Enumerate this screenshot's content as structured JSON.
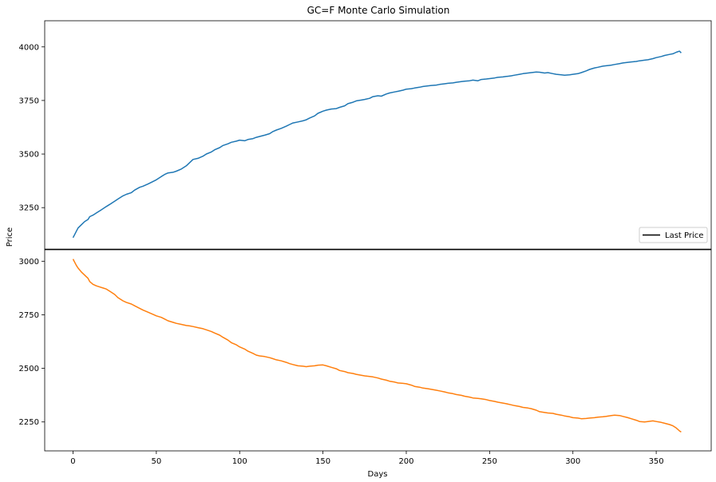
{
  "chart_data": {
    "type": "line",
    "title": "GC=F Monte Carlo Simulation",
    "xlabel": "Days",
    "ylabel": "Price",
    "xlim": [
      -17,
      383
    ],
    "ylim": [
      2115,
      4122
    ],
    "x_ticks": [
      0,
      50,
      100,
      150,
      200,
      250,
      300,
      350
    ],
    "y_ticks": [
      2250,
      2500,
      2750,
      3000,
      3250,
      3500,
      3750,
      4000
    ],
    "grid": false,
    "legend": {
      "position": "right, just above the last-price line",
      "entries": [
        "Last Price"
      ]
    },
    "hline": {
      "label": "Last Price",
      "value": 3055,
      "color": "#000000"
    },
    "series": [
      {
        "color": "#1f77b4",
        "points": [
          [
            0,
            3110
          ],
          [
            1,
            3125
          ],
          [
            2,
            3140
          ],
          [
            3,
            3155
          ],
          [
            5,
            3170
          ],
          [
            7,
            3185
          ],
          [
            9,
            3195
          ],
          [
            10,
            3208
          ],
          [
            12,
            3215
          ],
          [
            14,
            3225
          ],
          [
            16,
            3235
          ],
          [
            18,
            3245
          ],
          [
            20,
            3255
          ],
          [
            22,
            3265
          ],
          [
            25,
            3280
          ],
          [
            27,
            3290
          ],
          [
            30,
            3305
          ],
          [
            32,
            3312
          ],
          [
            35,
            3320
          ],
          [
            37,
            3332
          ],
          [
            40,
            3345
          ],
          [
            42,
            3350
          ],
          [
            45,
            3360
          ],
          [
            48,
            3372
          ],
          [
            50,
            3380
          ],
          [
            53,
            3395
          ],
          [
            55,
            3405
          ],
          [
            57,
            3412
          ],
          [
            60,
            3415
          ],
          [
            62,
            3420
          ],
          [
            65,
            3430
          ],
          [
            68,
            3445
          ],
          [
            70,
            3460
          ],
          [
            72,
            3475
          ],
          [
            75,
            3480
          ],
          [
            78,
            3490
          ],
          [
            80,
            3500
          ],
          [
            83,
            3510
          ],
          [
            85,
            3520
          ],
          [
            88,
            3530
          ],
          [
            90,
            3540
          ],
          [
            93,
            3548
          ],
          [
            95,
            3555
          ],
          [
            98,
            3560
          ],
          [
            100,
            3565
          ],
          [
            103,
            3562
          ],
          [
            105,
            3568
          ],
          [
            108,
            3572
          ],
          [
            110,
            3578
          ],
          [
            112,
            3582
          ],
          [
            115,
            3588
          ],
          [
            118,
            3595
          ],
          [
            120,
            3605
          ],
          [
            122,
            3612
          ],
          [
            125,
            3620
          ],
          [
            128,
            3630
          ],
          [
            130,
            3638
          ],
          [
            132,
            3645
          ],
          [
            135,
            3650
          ],
          [
            138,
            3655
          ],
          [
            140,
            3660
          ],
          [
            142,
            3668
          ],
          [
            145,
            3678
          ],
          [
            147,
            3690
          ],
          [
            150,
            3700
          ],
          [
            152,
            3705
          ],
          [
            155,
            3710
          ],
          [
            158,
            3712
          ],
          [
            160,
            3718
          ],
          [
            163,
            3725
          ],
          [
            165,
            3735
          ],
          [
            168,
            3742
          ],
          [
            170,
            3748
          ],
          [
            173,
            3752
          ],
          [
            175,
            3755
          ],
          [
            178,
            3760
          ],
          [
            180,
            3768
          ],
          [
            183,
            3772
          ],
          [
            185,
            3770
          ],
          [
            188,
            3780
          ],
          [
            190,
            3785
          ],
          [
            193,
            3790
          ],
          [
            195,
            3793
          ],
          [
            198,
            3798
          ],
          [
            200,
            3803
          ],
          [
            203,
            3805
          ],
          [
            205,
            3808
          ],
          [
            208,
            3812
          ],
          [
            210,
            3815
          ],
          [
            213,
            3818
          ],
          [
            215,
            3820
          ],
          [
            218,
            3822
          ],
          [
            220,
            3825
          ],
          [
            223,
            3828
          ],
          [
            225,
            3830
          ],
          [
            228,
            3832
          ],
          [
            230,
            3835
          ],
          [
            233,
            3838
          ],
          [
            235,
            3840
          ],
          [
            238,
            3842
          ],
          [
            240,
            3845
          ],
          [
            243,
            3842
          ],
          [
            245,
            3848
          ],
          [
            248,
            3850
          ],
          [
            250,
            3852
          ],
          [
            253,
            3855
          ],
          [
            255,
            3858
          ],
          [
            258,
            3860
          ],
          [
            260,
            3862
          ],
          [
            263,
            3865
          ],
          [
            265,
            3868
          ],
          [
            268,
            3872
          ],
          [
            270,
            3875
          ],
          [
            273,
            3878
          ],
          [
            275,
            3880
          ],
          [
            278,
            3883
          ],
          [
            280,
            3882
          ],
          [
            283,
            3878
          ],
          [
            285,
            3880
          ],
          [
            288,
            3875
          ],
          [
            290,
            3872
          ],
          [
            293,
            3870
          ],
          [
            295,
            3868
          ],
          [
            298,
            3870
          ],
          [
            300,
            3872
          ],
          [
            303,
            3875
          ],
          [
            305,
            3880
          ],
          [
            308,
            3888
          ],
          [
            310,
            3895
          ],
          [
            313,
            3902
          ],
          [
            315,
            3905
          ],
          [
            318,
            3910
          ],
          [
            320,
            3912
          ],
          [
            323,
            3915
          ],
          [
            325,
            3918
          ],
          [
            328,
            3922
          ],
          [
            330,
            3925
          ],
          [
            333,
            3928
          ],
          [
            335,
            3930
          ],
          [
            338,
            3932
          ],
          [
            340,
            3935
          ],
          [
            343,
            3938
          ],
          [
            345,
            3940
          ],
          [
            348,
            3945
          ],
          [
            350,
            3950
          ],
          [
            353,
            3955
          ],
          [
            355,
            3960
          ],
          [
            358,
            3965
          ],
          [
            360,
            3968
          ],
          [
            362,
            3975
          ],
          [
            364,
            3980
          ],
          [
            365,
            3972
          ]
        ]
      },
      {
        "color": "#ff7f0e",
        "points": [
          [
            0,
            3010
          ],
          [
            1,
            2995
          ],
          [
            2,
            2980
          ],
          [
            3,
            2968
          ],
          [
            5,
            2950
          ],
          [
            7,
            2935
          ],
          [
            9,
            2920
          ],
          [
            10,
            2905
          ],
          [
            12,
            2892
          ],
          [
            14,
            2885
          ],
          [
            16,
            2880
          ],
          [
            18,
            2875
          ],
          [
            20,
            2870
          ],
          [
            22,
            2860
          ],
          [
            25,
            2845
          ],
          [
            27,
            2830
          ],
          [
            30,
            2815
          ],
          [
            32,
            2808
          ],
          [
            35,
            2800
          ],
          [
            37,
            2792
          ],
          [
            40,
            2780
          ],
          [
            42,
            2772
          ],
          [
            45,
            2762
          ],
          [
            48,
            2752
          ],
          [
            50,
            2745
          ],
          [
            53,
            2738
          ],
          [
            55,
            2730
          ],
          [
            57,
            2722
          ],
          [
            60,
            2715
          ],
          [
            62,
            2710
          ],
          [
            65,
            2705
          ],
          [
            68,
            2700
          ],
          [
            70,
            2698
          ],
          [
            72,
            2695
          ],
          [
            75,
            2690
          ],
          [
            78,
            2685
          ],
          [
            80,
            2680
          ],
          [
            83,
            2672
          ],
          [
            85,
            2665
          ],
          [
            88,
            2655
          ],
          [
            90,
            2645
          ],
          [
            93,
            2632
          ],
          [
            95,
            2620
          ],
          [
            98,
            2610
          ],
          [
            100,
            2600
          ],
          [
            103,
            2590
          ],
          [
            105,
            2580
          ],
          [
            108,
            2570
          ],
          [
            110,
            2562
          ],
          [
            112,
            2558
          ],
          [
            115,
            2555
          ],
          [
            118,
            2550
          ],
          [
            120,
            2545
          ],
          [
            122,
            2540
          ],
          [
            125,
            2535
          ],
          [
            128,
            2528
          ],
          [
            130,
            2522
          ],
          [
            132,
            2518
          ],
          [
            135,
            2512
          ],
          [
            138,
            2510
          ],
          [
            140,
            2508
          ],
          [
            142,
            2510
          ],
          [
            145,
            2512
          ],
          [
            147,
            2515
          ],
          [
            150,
            2516
          ],
          [
            152,
            2512
          ],
          [
            155,
            2505
          ],
          [
            158,
            2498
          ],
          [
            160,
            2490
          ],
          [
            163,
            2485
          ],
          [
            165,
            2480
          ],
          [
            168,
            2476
          ],
          [
            170,
            2472
          ],
          [
            173,
            2468
          ],
          [
            175,
            2465
          ],
          [
            178,
            2462
          ],
          [
            180,
            2460
          ],
          [
            183,
            2455
          ],
          [
            185,
            2450
          ],
          [
            188,
            2445
          ],
          [
            190,
            2440
          ],
          [
            193,
            2436
          ],
          [
            195,
            2432
          ],
          [
            198,
            2430
          ],
          [
            200,
            2428
          ],
          [
            203,
            2422
          ],
          [
            205,
            2416
          ],
          [
            208,
            2412
          ],
          [
            210,
            2408
          ],
          [
            213,
            2405
          ],
          [
            215,
            2402
          ],
          [
            218,
            2398
          ],
          [
            220,
            2395
          ],
          [
            223,
            2390
          ],
          [
            225,
            2386
          ],
          [
            228,
            2382
          ],
          [
            230,
            2378
          ],
          [
            233,
            2374
          ],
          [
            235,
            2370
          ],
          [
            238,
            2366
          ],
          [
            240,
            2362
          ],
          [
            243,
            2360
          ],
          [
            245,
            2358
          ],
          [
            248,
            2354
          ],
          [
            250,
            2350
          ],
          [
            253,
            2346
          ],
          [
            255,
            2342
          ],
          [
            258,
            2338
          ],
          [
            260,
            2335
          ],
          [
            263,
            2330
          ],
          [
            265,
            2326
          ],
          [
            268,
            2322
          ],
          [
            270,
            2318
          ],
          [
            273,
            2315
          ],
          [
            275,
            2312
          ],
          [
            278,
            2305
          ],
          [
            280,
            2298
          ],
          [
            283,
            2294
          ],
          [
            285,
            2292
          ],
          [
            288,
            2290
          ],
          [
            290,
            2286
          ],
          [
            293,
            2282
          ],
          [
            295,
            2278
          ],
          [
            298,
            2274
          ],
          [
            300,
            2270
          ],
          [
            303,
            2268
          ],
          [
            305,
            2265
          ],
          [
            308,
            2266
          ],
          [
            310,
            2268
          ],
          [
            313,
            2270
          ],
          [
            315,
            2272
          ],
          [
            318,
            2274
          ],
          [
            320,
            2276
          ],
          [
            323,
            2280
          ],
          [
            325,
            2282
          ],
          [
            328,
            2280
          ],
          [
            330,
            2276
          ],
          [
            333,
            2270
          ],
          [
            335,
            2265
          ],
          [
            338,
            2258
          ],
          [
            340,
            2252
          ],
          [
            343,
            2250
          ],
          [
            345,
            2252
          ],
          [
            348,
            2255
          ],
          [
            350,
            2252
          ],
          [
            353,
            2248
          ],
          [
            355,
            2244
          ],
          [
            358,
            2238
          ],
          [
            360,
            2232
          ],
          [
            362,
            2222
          ],
          [
            364,
            2208
          ],
          [
            365,
            2203
          ]
        ]
      }
    ]
  }
}
